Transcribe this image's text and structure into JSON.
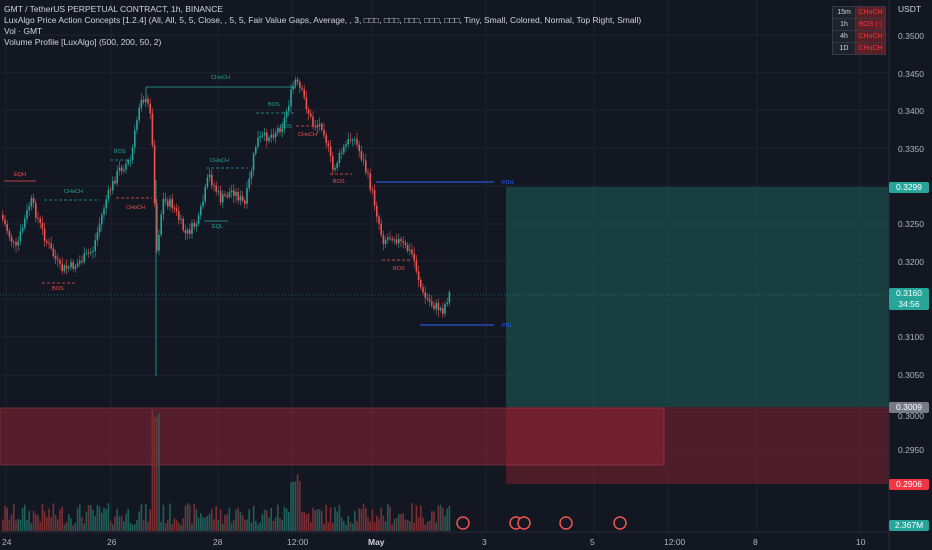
{
  "legend": {
    "line1": "GMT / TetherUS PERPETUAL CONTRACT, 1h, BINANCE",
    "line2": "LuxAlgo Price Action Concepts [1.2.4] (All, All, 5, 5, Close, , 5, 5, Fair Value Gaps, Average, , 3, □□□, □□□, □□□, □□□, □□□, Tiny, Small, Colored, Normal, Top Right, Small)",
    "line3": "Vol · GMT",
    "line4": "Volume Profile [LuxAlgo] (500, 200, 50, 2)"
  },
  "currency": "USDT",
  "mtf_table": [
    {
      "tf": "15m",
      "status": "CHoCH"
    },
    {
      "tf": "1h",
      "status": "BOS (-)"
    },
    {
      "tf": "4h",
      "status": "CHoCH"
    },
    {
      "tf": "1D",
      "status": "CHoCH"
    }
  ],
  "price_axis": [
    "0.3500",
    "0.3450",
    "0.3400",
    "0.3350",
    "0.3250",
    "0.3200",
    "0.3100",
    "0.3050",
    "0.3000",
    "0.2950"
  ],
  "price_labels": {
    "target": "0.3299",
    "current": "0.3160",
    "countdown": "34:56",
    "entry": "0.3009",
    "stop": "0.2906",
    "volume": "2.367M"
  },
  "time_axis": [
    "24",
    "26",
    "28",
    "12:00",
    "May",
    "3",
    "5",
    "12:00",
    "8",
    "10"
  ],
  "chart_labels": {
    "choch_top": "CHoCH",
    "choch_mid": "CHoCH",
    "choch_left": "CHoCH",
    "choch_down1": "CHoCH",
    "choch_down2": "CHoCH",
    "bos1": "BOS",
    "bos2": "BOS",
    "bos3": "BOS",
    "bos4": "BOS",
    "bos5": "BOS",
    "bos6": "BOS",
    "eqh": "EQH",
    "eql": "EQL",
    "pdh": "PDH",
    "pdl": "PDL"
  },
  "colors": {
    "background": "#131722",
    "bull": "#26a69a",
    "bear": "#ef5350",
    "target_zone": "#1e5f58",
    "stop_zone": "#5b1f2a",
    "label_blue": "#2962ff"
  }
}
